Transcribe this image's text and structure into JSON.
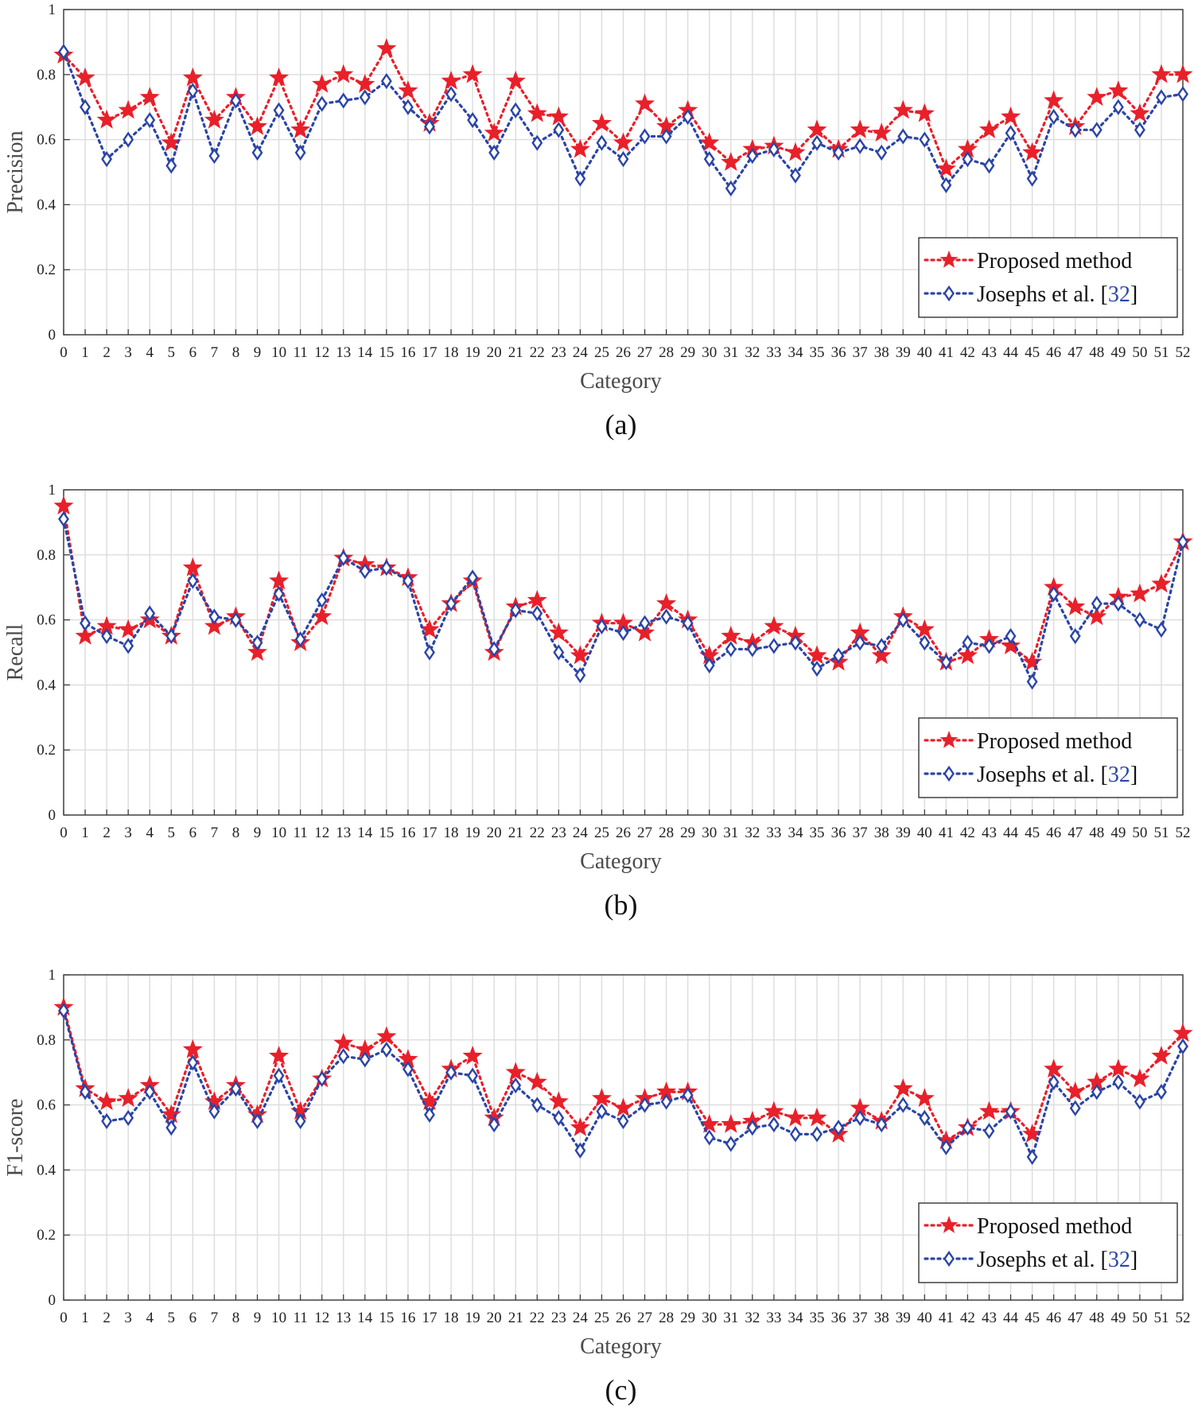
{
  "chart_data": [
    {
      "type": "line",
      "caption": "(a)",
      "xlabel": "Category",
      "ylabel": "Precision",
      "ylim": [
        0,
        1
      ],
      "yticks": [
        "0",
        "0.2",
        "0.4",
        "0.6",
        "0.8",
        "1"
      ],
      "grid": true,
      "legend_position": "bottom-right",
      "categories": [
        0,
        1,
        2,
        3,
        4,
        5,
        6,
        7,
        8,
        9,
        10,
        11,
        12,
        13,
        14,
        15,
        16,
        17,
        18,
        19,
        20,
        21,
        22,
        23,
        24,
        25,
        26,
        27,
        28,
        29,
        30,
        31,
        32,
        33,
        34,
        35,
        36,
        37,
        38,
        39,
        40,
        41,
        42,
        43,
        44,
        45,
        46,
        47,
        48,
        49,
        50,
        51,
        52
      ],
      "series": [
        {
          "name": "Proposed method",
          "marker": "star",
          "color": "#e8202a",
          "values": [
            0.86,
            0.79,
            0.66,
            0.69,
            0.73,
            0.59,
            0.79,
            0.66,
            0.73,
            0.64,
            0.79,
            0.63,
            0.77,
            0.8,
            0.77,
            0.88,
            0.75,
            0.65,
            0.78,
            0.8,
            0.62,
            0.78,
            0.68,
            0.67,
            0.57,
            0.65,
            0.59,
            0.71,
            0.64,
            0.69,
            0.59,
            0.53,
            0.57,
            0.58,
            0.56,
            0.63,
            0.57,
            0.63,
            0.62,
            0.69,
            0.68,
            0.51,
            0.57,
            0.63,
            0.67,
            0.56,
            0.72,
            0.64,
            0.73,
            0.75,
            0.68,
            0.8,
            0.8
          ]
        },
        {
          "name": "Josephs et al. [32]",
          "name_main": "Josephs et al. [",
          "name_ref": "32",
          "name_end": "]",
          "marker": "diamond",
          "color": "#2b45a6",
          "values": [
            0.87,
            0.7,
            0.54,
            0.6,
            0.66,
            0.52,
            0.75,
            0.55,
            0.72,
            0.56,
            0.69,
            0.56,
            0.71,
            0.72,
            0.73,
            0.78,
            0.7,
            0.64,
            0.74,
            0.66,
            0.56,
            0.69,
            0.59,
            0.63,
            0.48,
            0.59,
            0.54,
            0.61,
            0.61,
            0.67,
            0.54,
            0.45,
            0.55,
            0.57,
            0.49,
            0.59,
            0.56,
            0.58,
            0.56,
            0.61,
            0.6,
            0.46,
            0.54,
            0.52,
            0.62,
            0.48,
            0.67,
            0.63,
            0.63,
            0.7,
            0.63,
            0.73,
            0.74
          ]
        }
      ]
    },
    {
      "type": "line",
      "caption": "(b)",
      "xlabel": "Category",
      "ylabel": "Recall",
      "ylim": [
        0,
        1
      ],
      "yticks": [
        "0",
        "0.2",
        "0.4",
        "0.6",
        "0.8",
        "1"
      ],
      "grid": true,
      "legend_position": "bottom-right",
      "categories": [
        0,
        1,
        2,
        3,
        4,
        5,
        6,
        7,
        8,
        9,
        10,
        11,
        12,
        13,
        14,
        15,
        16,
        17,
        18,
        19,
        20,
        21,
        22,
        23,
        24,
        25,
        26,
        27,
        28,
        29,
        30,
        31,
        32,
        33,
        34,
        35,
        36,
        37,
        38,
        39,
        40,
        41,
        42,
        43,
        44,
        45,
        46,
        47,
        48,
        49,
        50,
        51,
        52
      ],
      "series": [
        {
          "name": "Proposed method",
          "marker": "star",
          "color": "#e8202a",
          "values": [
            0.95,
            0.55,
            0.58,
            0.57,
            0.6,
            0.55,
            0.76,
            0.58,
            0.61,
            0.5,
            0.72,
            0.53,
            0.61,
            0.79,
            0.77,
            0.76,
            0.73,
            0.57,
            0.65,
            0.72,
            0.5,
            0.64,
            0.66,
            0.56,
            0.49,
            0.59,
            0.59,
            0.56,
            0.65,
            0.6,
            0.49,
            0.55,
            0.53,
            0.58,
            0.55,
            0.49,
            0.47,
            0.56,
            0.49,
            0.61,
            0.57,
            0.47,
            0.49,
            0.54,
            0.52,
            0.47,
            0.7,
            0.64,
            0.61,
            0.67,
            0.68,
            0.71,
            0.84
          ]
        },
        {
          "name": "Josephs et al. [32]",
          "name_main": "Josephs et al. [",
          "name_ref": "32",
          "name_end": "]",
          "marker": "diamond",
          "color": "#2b45a6",
          "values": [
            0.91,
            0.59,
            0.55,
            0.52,
            0.62,
            0.55,
            0.72,
            0.61,
            0.6,
            0.53,
            0.68,
            0.54,
            0.66,
            0.79,
            0.75,
            0.76,
            0.72,
            0.5,
            0.65,
            0.73,
            0.51,
            0.63,
            0.62,
            0.5,
            0.43,
            0.58,
            0.56,
            0.59,
            0.61,
            0.59,
            0.46,
            0.51,
            0.51,
            0.52,
            0.53,
            0.45,
            0.49,
            0.53,
            0.52,
            0.6,
            0.53,
            0.47,
            0.53,
            0.52,
            0.55,
            0.41,
            0.68,
            0.55,
            0.65,
            0.65,
            0.6,
            0.57,
            0.84
          ]
        }
      ]
    },
    {
      "type": "line",
      "caption": "(c)",
      "xlabel": "Category",
      "ylabel": "F1-score",
      "ylim": [
        0,
        1
      ],
      "yticks": [
        "0",
        "0.2",
        "0.4",
        "0.6",
        "0.8",
        "1"
      ],
      "grid": true,
      "legend_position": "bottom-right",
      "categories": [
        0,
        1,
        2,
        3,
        4,
        5,
        6,
        7,
        8,
        9,
        10,
        11,
        12,
        13,
        14,
        15,
        16,
        17,
        18,
        19,
        20,
        21,
        22,
        23,
        24,
        25,
        26,
        27,
        28,
        29,
        30,
        31,
        32,
        33,
        34,
        35,
        36,
        37,
        38,
        39,
        40,
        41,
        42,
        43,
        44,
        45,
        46,
        47,
        48,
        49,
        50,
        51,
        52
      ],
      "series": [
        {
          "name": "Proposed method",
          "marker": "star",
          "color": "#e8202a",
          "values": [
            0.9,
            0.65,
            0.61,
            0.62,
            0.66,
            0.57,
            0.77,
            0.61,
            0.66,
            0.57,
            0.75,
            0.58,
            0.68,
            0.79,
            0.77,
            0.81,
            0.74,
            0.61,
            0.71,
            0.75,
            0.56,
            0.7,
            0.67,
            0.61,
            0.53,
            0.62,
            0.59,
            0.62,
            0.64,
            0.64,
            0.54,
            0.54,
            0.55,
            0.58,
            0.56,
            0.56,
            0.51,
            0.59,
            0.55,
            0.65,
            0.62,
            0.49,
            0.53,
            0.58,
            0.58,
            0.51,
            0.71,
            0.64,
            0.67,
            0.71,
            0.68,
            0.75,
            0.82
          ]
        },
        {
          "name": "Josephs et al. [32]",
          "name_main": "Josephs et al. [",
          "name_ref": "32",
          "name_end": "]",
          "marker": "diamond",
          "color": "#2b45a6",
          "values": [
            0.89,
            0.64,
            0.55,
            0.56,
            0.64,
            0.53,
            0.73,
            0.58,
            0.65,
            0.55,
            0.69,
            0.55,
            0.68,
            0.75,
            0.74,
            0.77,
            0.71,
            0.57,
            0.7,
            0.69,
            0.54,
            0.66,
            0.6,
            0.56,
            0.46,
            0.58,
            0.55,
            0.6,
            0.61,
            0.63,
            0.5,
            0.48,
            0.53,
            0.54,
            0.51,
            0.51,
            0.53,
            0.56,
            0.54,
            0.6,
            0.56,
            0.47,
            0.53,
            0.52,
            0.58,
            0.44,
            0.67,
            0.59,
            0.64,
            0.67,
            0.61,
            0.64,
            0.78
          ]
        }
      ]
    }
  ]
}
